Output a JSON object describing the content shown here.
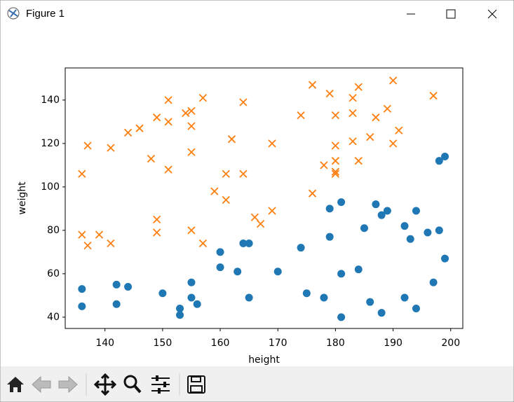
{
  "window_title": "Figure 1",
  "chart_data": {
    "type": "scatter",
    "xlabel": "height",
    "ylabel": "weight",
    "xlim": [
      133.1,
      202.1
    ],
    "ylim": [
      34.8,
      154.8
    ],
    "xticks": [
      140,
      150,
      160,
      170,
      180,
      190,
      200
    ],
    "yticks": [
      40,
      60,
      80,
      100,
      120,
      140
    ],
    "series": [
      {
        "color": "#1f77b4",
        "marker": "o",
        "x": [
          136,
          136,
          142,
          144,
          142,
          150,
          153,
          153,
          155,
          155,
          156,
          160,
          160,
          163,
          164,
          165,
          165,
          170,
          174,
          175,
          178,
          179,
          179,
          181,
          181,
          181,
          184,
          185,
          186,
          187,
          188,
          189,
          188,
          192,
          193,
          192,
          194,
          194,
          196,
          197,
          198,
          198,
          199,
          199
        ],
        "y": [
          53,
          45,
          55,
          54,
          46,
          51,
          44,
          41,
          56,
          49,
          46,
          70,
          63,
          61,
          74,
          74,
          49,
          61,
          72,
          51,
          49,
          90,
          77,
          93,
          60,
          40,
          62,
          81,
          47,
          92,
          87,
          89,
          42,
          82,
          76,
          49,
          89,
          44,
          79,
          56,
          112,
          80,
          114,
          67
        ]
      },
      {
        "color": "#ff7f0e",
        "marker": "x",
        "x": [
          136,
          136,
          137,
          137,
          139,
          141,
          141,
          144,
          146,
          148,
          149,
          149,
          149,
          151,
          151,
          151,
          154,
          155,
          155,
          155,
          155,
          157,
          157,
          159,
          161,
          161,
          162,
          164,
          164,
          166,
          167,
          169,
          169,
          174,
          176,
          176,
          178,
          179,
          180,
          180,
          180,
          180,
          180,
          183,
          183,
          183,
          184,
          184,
          186,
          187,
          189,
          190,
          190,
          191,
          197
        ],
        "y": [
          106,
          78,
          119,
          73,
          78,
          118,
          74,
          125,
          127,
          113,
          132,
          85,
          79,
          140,
          130,
          108,
          134,
          135,
          128,
          116,
          80,
          141,
          74,
          98,
          106,
          94,
          122,
          139,
          106,
          86,
          83,
          120,
          89,
          133,
          147,
          97,
          110,
          143,
          133,
          119,
          112,
          107,
          106,
          141,
          134,
          121,
          146,
          112,
          123,
          132,
          136,
          149,
          120,
          126,
          142
        ]
      }
    ]
  }
}
